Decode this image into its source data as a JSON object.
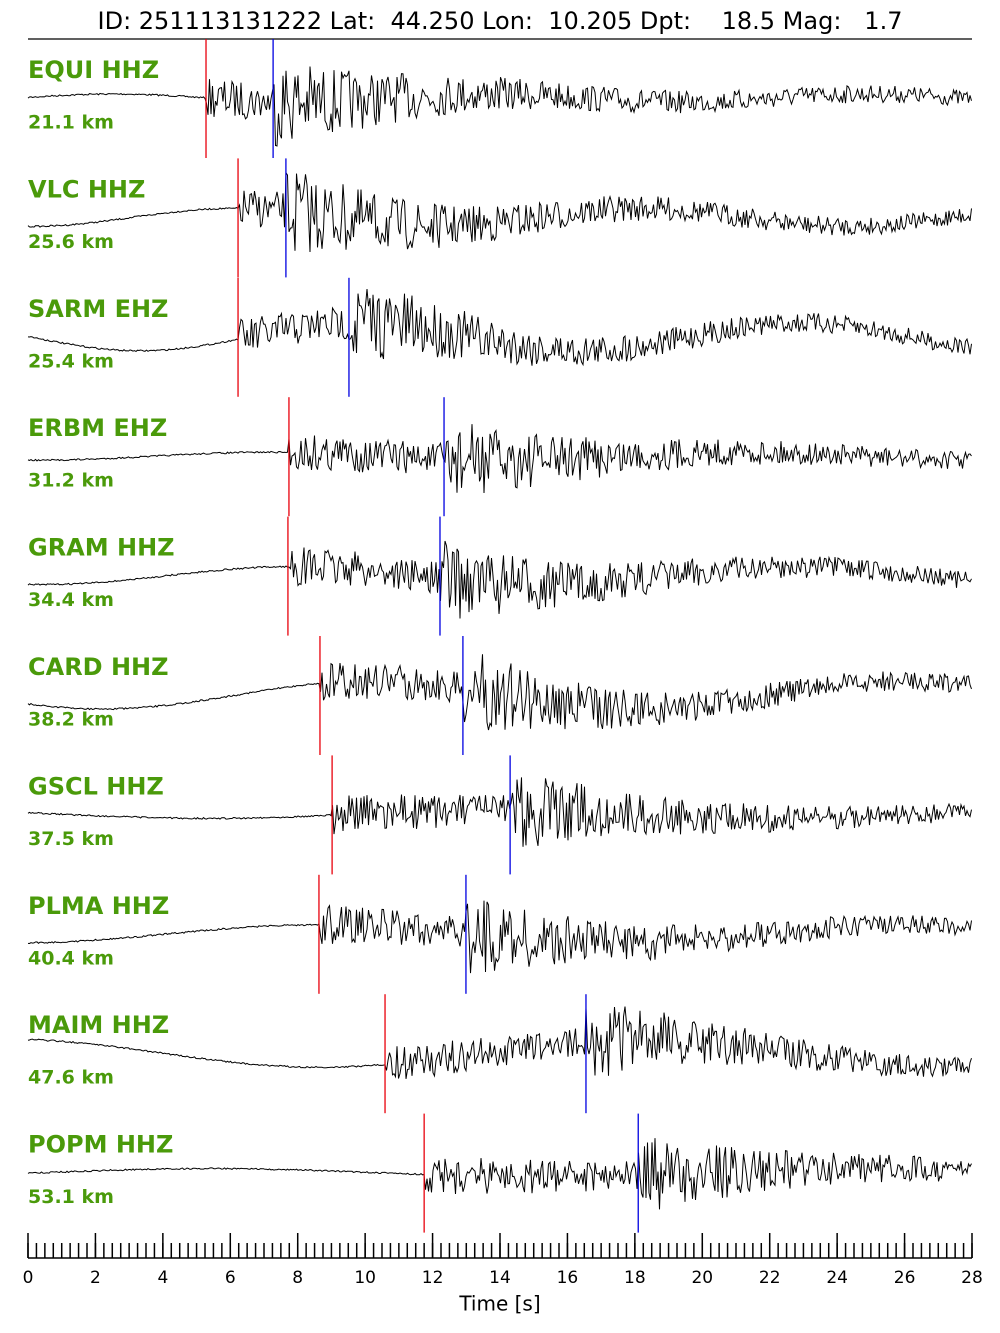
{
  "chart_data": {
    "type": "seismogram",
    "title": "ID: 251113131222 Lat:  44.250 Lon:  10.205 Dpt:    18.5 Mag:   1.7",
    "x_label": "Time [s]",
    "xlim": [
      0,
      28
    ],
    "xticks": [
      0,
      2,
      4,
      6,
      8,
      10,
      12,
      14,
      16,
      18,
      20,
      22,
      24,
      26,
      28
    ],
    "xminorticks": [
      0,
      0.25,
      0.5,
      0.75,
      1,
      1.25,
      1.5,
      1.75,
      2,
      2.25,
      2.5,
      2.75,
      3,
      3.25,
      3.5,
      3.75,
      4,
      4.25,
      4.5,
      4.75,
      5,
      5.25,
      5.5,
      5.75,
      6,
      6.25,
      6.5,
      6.75,
      7,
      7.25,
      7.5,
      7.75,
      8,
      8.25,
      8.5,
      8.75,
      9,
      9.25,
      9.5,
      9.75,
      10,
      10.25,
      10.5,
      10.75,
      11,
      11.25,
      11.5,
      11.75,
      12,
      12.25,
      12.5,
      12.75,
      13,
      13.25,
      13.5,
      13.75,
      14,
      14.25,
      14.5,
      14.75,
      15,
      15.25,
      15.5,
      15.75,
      16,
      16.25,
      16.5,
      16.75,
      17,
      17.25,
      17.5,
      17.75,
      18,
      18.25,
      18.5,
      18.75,
      19,
      19.25,
      19.5,
      19.75,
      20,
      20.25,
      20.5,
      20.75,
      21,
      21.25,
      21.5,
      21.75,
      22,
      22.25,
      22.5,
      22.75,
      23,
      23.25,
      23.5,
      23.75,
      24,
      24.25,
      24.5,
      24.75,
      25,
      25.25,
      25.5,
      25.75,
      26,
      26.25,
      26.5,
      26.75,
      27,
      27.25,
      27.5,
      27.75,
      28
    ],
    "p_color": "#e8000b",
    "s_color": "#0000e0",
    "trace_color": "#000000",
    "stations": [
      {
        "name": "EQUI HHZ",
        "distance": "21.1 km",
        "p": 5.28,
        "s": 7.27
      },
      {
        "name": "VLC HHZ",
        "distance": "25.6 km",
        "p": 6.23,
        "s": 7.65
      },
      {
        "name": "SARM EHZ",
        "distance": "25.4 km",
        "p": 6.23,
        "s": 9.52
      },
      {
        "name": "ERBM EHZ",
        "distance": "31.2 km",
        "p": 7.74,
        "s": 12.34
      },
      {
        "name": "GRAM HHZ",
        "distance": "34.4 km",
        "p": 7.71,
        "s": 12.22
      },
      {
        "name": "CARD HHZ",
        "distance": "38.2 km",
        "p": 8.66,
        "s": 12.9
      },
      {
        "name": "GSCL HHZ",
        "distance": "37.5 km",
        "p": 9.02,
        "s": 14.3
      },
      {
        "name": "PLMA HHZ",
        "distance": "40.4 km",
        "p": 8.63,
        "s": 12.99
      },
      {
        "name": "MAIM HHZ",
        "distance": "47.6 km",
        "p": 10.59,
        "s": 16.55
      },
      {
        "name": "POPM HHZ",
        "distance": "53.1 km",
        "p": 11.75,
        "s": 18.1
      }
    ]
  }
}
